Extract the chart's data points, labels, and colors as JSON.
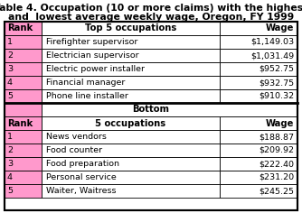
{
  "title_line1": "Table 4. Occupation (10 or more claims) with the highest",
  "title_line2": "and  lowest average weekly wage, Oregon, FY 1999",
  "top_header_rank": "Rank",
  "top_header_occ": "Top 5 occupations",
  "top_header_wage": "Wage",
  "top_rows": [
    [
      "1",
      "Firefighter supervisor",
      "$1,149.03"
    ],
    [
      "2",
      "Electrician supervisor",
      "$1,031.49"
    ],
    [
      "3",
      "Electric power installer",
      "$952.75"
    ],
    [
      "4",
      "Financial manager",
      "$932.75"
    ],
    [
      "5",
      "Phone line installer",
      "$910.32"
    ]
  ],
  "bottom_header_rank": "Rank",
  "bottom_header_occ": "5 occupations",
  "bottom_header_wage": "Wage",
  "bottom_label": "Bottom",
  "bottom_rows": [
    [
      "1",
      "News vendors",
      "$188.87"
    ],
    [
      "2",
      "Food counter",
      "$209.92"
    ],
    [
      "3",
      "Food preparation",
      "$222.40"
    ],
    [
      "4",
      "Personal service",
      "$231.20"
    ],
    [
      "5",
      "Waiter, Waitress",
      "$245.25"
    ]
  ],
  "pink_color": "#FF99CC",
  "bg_color": "#FFFFFF",
  "border_color": "#000000",
  "title_fontsize": 7.8,
  "header_fontsize": 7.2,
  "cell_fontsize": 6.8
}
